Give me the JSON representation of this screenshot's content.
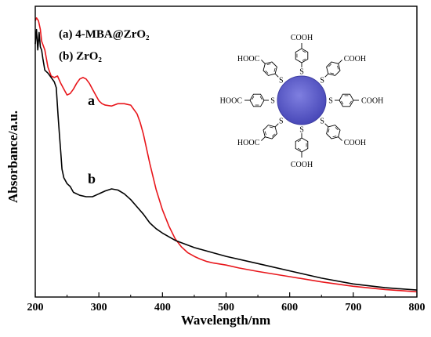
{
  "chart_data": {
    "type": "line",
    "xlabel": "Wavelength/nm",
    "ylabel": "Absorbance/a.u.",
    "xlim": [
      200,
      800
    ],
    "ylim": [
      0,
      1
    ],
    "x_ticks": [
      200,
      300,
      400,
      500,
      600,
      700,
      800
    ],
    "y_ticks_labeled": false,
    "grid": false,
    "legend": {
      "placement": "top-left",
      "entries": [
        "(a)  4-MBA@ZrO₂",
        "(b)  ZrO₂"
      ]
    },
    "series": [
      {
        "name": "(a)  4-MBA@ZrO₂",
        "label": "a",
        "color": "#e8161b",
        "x": [
          200,
          202,
          205,
          208,
          210,
          215,
          220,
          225,
          230,
          235,
          240,
          245,
          250,
          255,
          260,
          265,
          270,
          275,
          280,
          285,
          290,
          295,
          300,
          305,
          310,
          320,
          330,
          340,
          350,
          360,
          365,
          370,
          380,
          390,
          400,
          410,
          420,
          430,
          440,
          450,
          460,
          470,
          480,
          500,
          520,
          550,
          600,
          650,
          700,
          750,
          800
        ],
        "y": [
          0.95,
          0.96,
          0.95,
          0.92,
          0.88,
          0.85,
          0.79,
          0.76,
          0.755,
          0.76,
          0.735,
          0.715,
          0.695,
          0.7,
          0.715,
          0.735,
          0.75,
          0.755,
          0.75,
          0.735,
          0.715,
          0.695,
          0.675,
          0.665,
          0.66,
          0.657,
          0.665,
          0.665,
          0.66,
          0.63,
          0.6,
          0.56,
          0.46,
          0.37,
          0.3,
          0.245,
          0.2,
          0.172,
          0.152,
          0.14,
          0.13,
          0.122,
          0.117,
          0.11,
          0.1,
          0.088,
          0.07,
          0.052,
          0.037,
          0.026,
          0.018
        ]
      },
      {
        "name": "(b)  ZrO₂",
        "label": "b",
        "color": "#000000",
        "x": [
          200,
          202,
          204,
          206,
          208,
          210,
          212,
          215,
          220,
          225,
          230,
          233,
          236,
          238,
          240,
          242,
          245,
          250,
          255,
          260,
          270,
          280,
          290,
          300,
          310,
          320,
          330,
          340,
          350,
          360,
          370,
          380,
          390,
          400,
          420,
          450,
          500,
          550,
          600,
          650,
          700,
          750,
          800
        ],
        "y": [
          0.87,
          0.92,
          0.85,
          0.91,
          0.86,
          0.85,
          0.82,
          0.78,
          0.77,
          0.755,
          0.74,
          0.72,
          0.62,
          0.56,
          0.5,
          0.44,
          0.41,
          0.39,
          0.38,
          0.36,
          0.35,
          0.345,
          0.345,
          0.355,
          0.365,
          0.372,
          0.368,
          0.355,
          0.335,
          0.31,
          0.285,
          0.255,
          0.235,
          0.22,
          0.195,
          0.17,
          0.14,
          0.115,
          0.09,
          0.065,
          0.045,
          0.032,
          0.024
        ]
      }
    ],
    "annotations": [
      "a",
      "b"
    ],
    "inset": {
      "type": "molecular-structure",
      "groups": [
        "COOH",
        "HOOC",
        "COOH",
        "HOOC",
        "COOH",
        "HOOC",
        "COOH",
        "COOH"
      ],
      "linker": "S"
    }
  }
}
